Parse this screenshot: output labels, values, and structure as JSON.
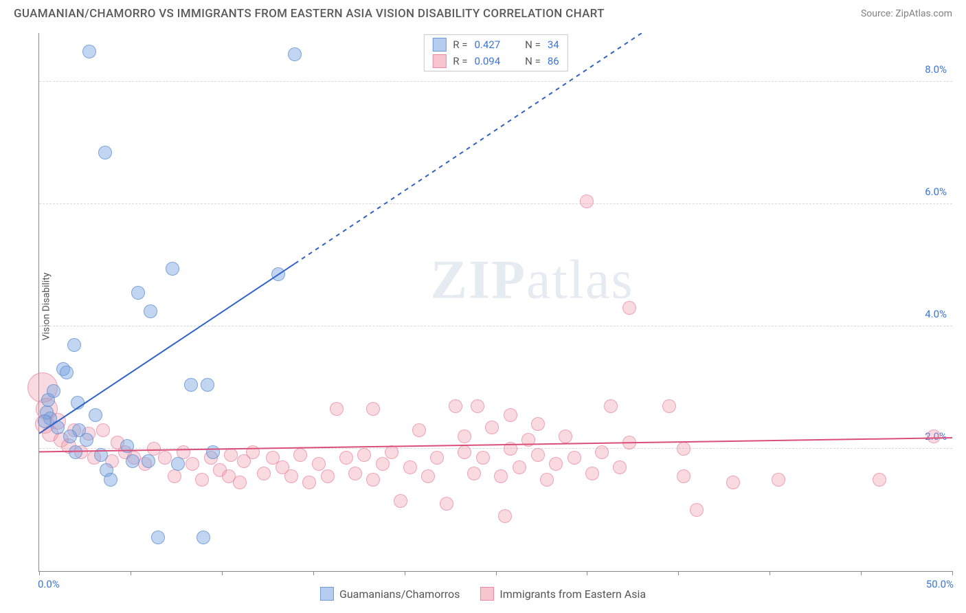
{
  "header": {
    "title": "GUAMANIAN/CHAMORRO VS IMMIGRANTS FROM EASTERN ASIA VISION DISABILITY CORRELATION CHART",
    "source": "Source: ZipAtlas.com"
  },
  "axes": {
    "y_label": "Vision Disability",
    "xlim": [
      0,
      50
    ],
    "ylim": [
      0,
      8.8
    ],
    "x_tick_min_label": "0.0%",
    "x_tick_max_label": "50.0%",
    "x_ticks": [
      0,
      5,
      10,
      15,
      20,
      25,
      30,
      35,
      40,
      45,
      50
    ],
    "y_gridlines": [
      {
        "value": 2.0,
        "label": "2.0%"
      },
      {
        "value": 4.0,
        "label": "4.0%"
      },
      {
        "value": 6.0,
        "label": "6.0%"
      },
      {
        "value": 8.0,
        "label": "8.0%"
      }
    ],
    "grid_color": "#d8d8d8",
    "axis_color": "#888888",
    "tick_label_color": "#3a74d8"
  },
  "series": {
    "blue": {
      "name": "Guamanians/Chamorros",
      "color_fill": "rgba(120,165,225,0.45)",
      "color_stroke": "rgba(90,140,210,0.7)",
      "R": "0.427",
      "N": "34",
      "marker_radius": 10,
      "trend": {
        "x1": 0,
        "y1": 2.25,
        "x2": 33,
        "y2": 8.8,
        "solid_until_x": 14,
        "color": "#2f62c7",
        "width": 2
      },
      "points": [
        {
          "x": 0.4,
          "y": 2.6,
          "r": 10
        },
        {
          "x": 0.5,
          "y": 2.8,
          "r": 10
        },
        {
          "x": 0.6,
          "y": 2.5,
          "r": 10
        },
        {
          "x": 0.8,
          "y": 2.95,
          "r": 10
        },
        {
          "x": 1.3,
          "y": 3.3,
          "r": 10
        },
        {
          "x": 1.5,
          "y": 3.25,
          "r": 10
        },
        {
          "x": 1.9,
          "y": 3.7,
          "r": 10
        },
        {
          "x": 2.1,
          "y": 2.75,
          "r": 10
        },
        {
          "x": 2.2,
          "y": 2.3,
          "r": 10
        },
        {
          "x": 2.6,
          "y": 2.15,
          "r": 10
        },
        {
          "x": 2.75,
          "y": 8.5,
          "r": 10
        },
        {
          "x": 3.1,
          "y": 2.55,
          "r": 10
        },
        {
          "x": 3.4,
          "y": 1.9,
          "r": 10
        },
        {
          "x": 3.6,
          "y": 6.85,
          "r": 10
        },
        {
          "x": 3.7,
          "y": 1.65,
          "r": 10
        },
        {
          "x": 3.9,
          "y": 1.5,
          "r": 10
        },
        {
          "x": 4.8,
          "y": 2.05,
          "r": 10
        },
        {
          "x": 5.1,
          "y": 1.8,
          "r": 10
        },
        {
          "x": 5.4,
          "y": 4.55,
          "r": 10
        },
        {
          "x": 6.0,
          "y": 1.8,
          "r": 10
        },
        {
          "x": 6.1,
          "y": 4.25,
          "r": 10
        },
        {
          "x": 6.5,
          "y": 0.55,
          "r": 10
        },
        {
          "x": 7.3,
          "y": 4.95,
          "r": 10
        },
        {
          "x": 7.6,
          "y": 1.75,
          "r": 10
        },
        {
          "x": 8.3,
          "y": 3.05,
          "r": 10
        },
        {
          "x": 9.0,
          "y": 0.55,
          "r": 10
        },
        {
          "x": 9.2,
          "y": 3.05,
          "r": 10
        },
        {
          "x": 9.5,
          "y": 1.95,
          "r": 10
        },
        {
          "x": 13.1,
          "y": 4.85,
          "r": 10
        },
        {
          "x": 14.0,
          "y": 8.45,
          "r": 10
        },
        {
          "x": 1.0,
          "y": 2.35,
          "r": 10
        },
        {
          "x": 1.7,
          "y": 2.2,
          "r": 10
        },
        {
          "x": 0.3,
          "y": 2.45,
          "r": 10
        },
        {
          "x": 2.0,
          "y": 1.95,
          "r": 10
        }
      ]
    },
    "pink": {
      "name": "Immigrants from Eastern Asia",
      "color_fill": "rgba(240,150,170,0.35)",
      "color_stroke": "rgba(230,120,150,0.6)",
      "R": "0.094",
      "N": "86",
      "marker_radius": 10,
      "trend": {
        "x1": 0,
        "y1": 1.95,
        "x2": 50,
        "y2": 2.18,
        "color": "#d94f7a",
        "width": 2
      },
      "points": [
        {
          "x": 0.2,
          "y": 3.0,
          "r": 22
        },
        {
          "x": 0.4,
          "y": 2.65,
          "r": 16
        },
        {
          "x": 0.3,
          "y": 2.4,
          "r": 14
        },
        {
          "x": 0.6,
          "y": 2.25,
          "r": 12
        },
        {
          "x": 1.0,
          "y": 2.45,
          "r": 12
        },
        {
          "x": 1.2,
          "y": 2.15,
          "r": 11
        },
        {
          "x": 1.6,
          "y": 2.05,
          "r": 11
        },
        {
          "x": 1.9,
          "y": 2.3,
          "r": 10
        },
        {
          "x": 2.3,
          "y": 1.95,
          "r": 10
        },
        {
          "x": 2.7,
          "y": 2.25,
          "r": 10
        },
        {
          "x": 3.0,
          "y": 1.85,
          "r": 10
        },
        {
          "x": 3.5,
          "y": 2.3,
          "r": 10
        },
        {
          "x": 4.0,
          "y": 1.8,
          "r": 10
        },
        {
          "x": 4.3,
          "y": 2.1,
          "r": 10
        },
        {
          "x": 4.7,
          "y": 1.95,
          "r": 10
        },
        {
          "x": 5.2,
          "y": 1.85,
          "r": 10
        },
        {
          "x": 5.8,
          "y": 1.75,
          "r": 10
        },
        {
          "x": 6.3,
          "y": 2.0,
          "r": 10
        },
        {
          "x": 6.9,
          "y": 1.85,
          "r": 10
        },
        {
          "x": 7.4,
          "y": 1.55,
          "r": 10
        },
        {
          "x": 7.9,
          "y": 1.95,
          "r": 10
        },
        {
          "x": 8.4,
          "y": 1.75,
          "r": 10
        },
        {
          "x": 8.9,
          "y": 1.5,
          "r": 10
        },
        {
          "x": 9.4,
          "y": 1.85,
          "r": 10
        },
        {
          "x": 9.9,
          "y": 1.65,
          "r": 10
        },
        {
          "x": 10.4,
          "y": 1.55,
          "r": 10
        },
        {
          "x": 10.5,
          "y": 1.9,
          "r": 10
        },
        {
          "x": 11.0,
          "y": 1.45,
          "r": 10
        },
        {
          "x": 11.2,
          "y": 1.8,
          "r": 10
        },
        {
          "x": 11.7,
          "y": 1.95,
          "r": 10
        },
        {
          "x": 12.3,
          "y": 1.6,
          "r": 10
        },
        {
          "x": 12.8,
          "y": 1.85,
          "r": 10
        },
        {
          "x": 13.3,
          "y": 1.7,
          "r": 10
        },
        {
          "x": 13.8,
          "y": 1.55,
          "r": 10
        },
        {
          "x": 14.3,
          "y": 1.9,
          "r": 10
        },
        {
          "x": 14.8,
          "y": 1.45,
          "r": 10
        },
        {
          "x": 15.3,
          "y": 1.75,
          "r": 10
        },
        {
          "x": 15.8,
          "y": 1.55,
          "r": 10
        },
        {
          "x": 16.3,
          "y": 2.65,
          "r": 10
        },
        {
          "x": 16.8,
          "y": 1.85,
          "r": 10
        },
        {
          "x": 17.3,
          "y": 1.6,
          "r": 10
        },
        {
          "x": 17.8,
          "y": 1.9,
          "r": 10
        },
        {
          "x": 18.3,
          "y": 1.5,
          "r": 10
        },
        {
          "x": 18.3,
          "y": 2.65,
          "r": 10
        },
        {
          "x": 18.8,
          "y": 1.75,
          "r": 10
        },
        {
          "x": 19.3,
          "y": 1.95,
          "r": 10
        },
        {
          "x": 19.8,
          "y": 1.15,
          "r": 10
        },
        {
          "x": 20.3,
          "y": 1.7,
          "r": 10
        },
        {
          "x": 20.8,
          "y": 2.3,
          "r": 10
        },
        {
          "x": 21.3,
          "y": 1.55,
          "r": 10
        },
        {
          "x": 21.8,
          "y": 1.85,
          "r": 10
        },
        {
          "x": 22.3,
          "y": 1.1,
          "r": 10
        },
        {
          "x": 22.8,
          "y": 2.7,
          "r": 10
        },
        {
          "x": 23.3,
          "y": 1.95,
          "r": 10
        },
        {
          "x": 23.3,
          "y": 2.2,
          "r": 10
        },
        {
          "x": 23.8,
          "y": 1.6,
          "r": 10
        },
        {
          "x": 24.0,
          "y": 2.7,
          "r": 10
        },
        {
          "x": 24.3,
          "y": 1.85,
          "r": 10
        },
        {
          "x": 24.8,
          "y": 2.35,
          "r": 10
        },
        {
          "x": 25.3,
          "y": 1.55,
          "r": 10
        },
        {
          "x": 25.5,
          "y": 0.9,
          "r": 10
        },
        {
          "x": 25.8,
          "y": 2.0,
          "r": 10
        },
        {
          "x": 25.8,
          "y": 2.55,
          "r": 10
        },
        {
          "x": 26.3,
          "y": 1.7,
          "r": 10
        },
        {
          "x": 26.8,
          "y": 2.15,
          "r": 10
        },
        {
          "x": 27.3,
          "y": 1.9,
          "r": 10
        },
        {
          "x": 27.3,
          "y": 2.4,
          "r": 10
        },
        {
          "x": 27.8,
          "y": 1.5,
          "r": 10
        },
        {
          "x": 28.3,
          "y": 1.75,
          "r": 10
        },
        {
          "x": 28.8,
          "y": 2.2,
          "r": 10
        },
        {
          "x": 29.3,
          "y": 1.85,
          "r": 10
        },
        {
          "x": 30.0,
          "y": 6.05,
          "r": 10
        },
        {
          "x": 30.3,
          "y": 1.6,
          "r": 10
        },
        {
          "x": 30.8,
          "y": 1.95,
          "r": 10
        },
        {
          "x": 31.3,
          "y": 2.7,
          "r": 10
        },
        {
          "x": 31.8,
          "y": 1.7,
          "r": 10
        },
        {
          "x": 32.3,
          "y": 2.1,
          "r": 10
        },
        {
          "x": 32.3,
          "y": 4.3,
          "r": 10
        },
        {
          "x": 34.5,
          "y": 2.7,
          "r": 10
        },
        {
          "x": 35.3,
          "y": 2.0,
          "r": 10
        },
        {
          "x": 35.3,
          "y": 1.55,
          "r": 10
        },
        {
          "x": 36.0,
          "y": 1.0,
          "r": 10
        },
        {
          "x": 38.0,
          "y": 1.45,
          "r": 10
        },
        {
          "x": 40.5,
          "y": 1.5,
          "r": 10
        },
        {
          "x": 46.0,
          "y": 1.5,
          "r": 10
        },
        {
          "x": 49.0,
          "y": 2.2,
          "r": 10
        }
      ]
    }
  },
  "legend_top": {
    "rows": [
      {
        "swatch": "blue",
        "r_label": "R  =",
        "r_val": "0.427",
        "n_label": "N  =",
        "n_val": "34"
      },
      {
        "swatch": "pink",
        "r_label": "R  =",
        "r_val": "0.094",
        "n_label": "N  =",
        "n_val": "86"
      }
    ]
  },
  "legend_bottom": {
    "items": [
      {
        "swatch": "blue",
        "label": "Guamanians/Chamorros"
      },
      {
        "swatch": "pink",
        "label": "Immigrants from Eastern Asia"
      }
    ]
  },
  "watermark": {
    "zip": "ZIP",
    "atlas": "atlas"
  }
}
